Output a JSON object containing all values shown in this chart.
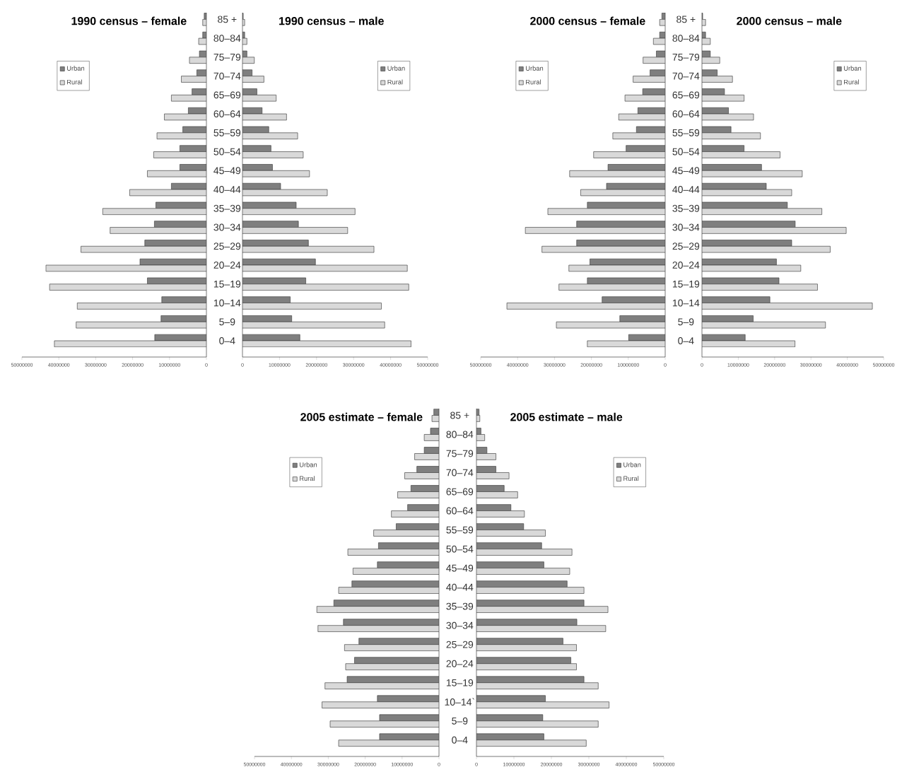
{
  "chart_data": [
    {
      "type": "bar",
      "orientation": "horizontal",
      "title": "1990 census – female",
      "categories": [
        "85 +",
        "80–84",
        "75–79",
        "70–74",
        "65–69",
        "60–64",
        "55–59",
        "50–54",
        "45–49",
        "40–44",
        "35–39",
        "30–34",
        "25–29",
        "20–24",
        "15–19",
        "10–14",
        "5–9",
        "0–4"
      ],
      "xlim": [
        50000000,
        0
      ],
      "xticks": [
        0,
        10000000,
        20000000,
        30000000,
        40000000,
        50000000
      ],
      "legend": "top left",
      "series": [
        {
          "name": "Urban",
          "color": "#7f7f7f",
          "values": [
            600000,
            1000000,
            1900000,
            2600000,
            3900000,
            4900000,
            6400000,
            7200000,
            7200000,
            9500000,
            13700000,
            14100000,
            16700000,
            18000000,
            16000000,
            12100000,
            12300000,
            14000000
          ]
        },
        {
          "name": "Rural",
          "color": "#d9d9d9",
          "values": [
            1000000,
            2100000,
            4600000,
            6800000,
            9500000,
            11400000,
            13400000,
            14300000,
            16000000,
            20800000,
            28100000,
            26100000,
            34000000,
            43500000,
            42500000,
            35000000,
            35300000,
            41200000
          ]
        }
      ]
    },
    {
      "type": "bar",
      "orientation": "horizontal",
      "title": "1990 census – male",
      "categories": [
        null,
        null,
        null,
        null,
        null,
        null,
        null,
        null,
        null,
        null,
        null,
        null,
        null,
        null,
        null,
        null,
        null,
        null
      ],
      "xlim": [
        0,
        50000000
      ],
      "xticks": [
        0,
        10000000,
        20000000,
        30000000,
        40000000,
        50000000
      ],
      "legend": "top right",
      "tick_labels": "x",
      "series": [
        {
          "name": "Urban",
          "color": "#7f7f7f",
          "values": [
            200000,
            600000,
            1200000,
            2600000,
            3900000,
            5300000,
            7100000,
            7700000,
            8100000,
            10300000,
            14500000,
            15100000,
            17800000,
            19700000,
            17100000,
            12900000,
            13300000,
            15500000
          ]
        },
        {
          "name": "Rural",
          "color": "#d9d9d9",
          "values": [
            600000,
            1200000,
            3200000,
            5800000,
            9100000,
            11900000,
            14900000,
            16400000,
            18100000,
            22900000,
            30400000,
            28400000,
            35500000,
            44500000,
            44900000,
            37500000,
            38400000,
            45500000
          ]
        }
      ]
    },
    {
      "type": "bar",
      "orientation": "horizontal",
      "title": "2000 census – female",
      "categories": [
        "85 +",
        "80–84",
        "75–79",
        "70–74",
        "65–69",
        "60–64",
        "55–59",
        "50–54",
        "45–49",
        "40–44",
        "35–39",
        "30–34",
        "25–29",
        "20–24",
        "15–19",
        "10–14",
        "5–9",
        "0–4"
      ],
      "xlim": [
        50000000,
        0
      ],
      "xticks": [
        0,
        10000000,
        20000000,
        30000000,
        40000000,
        50000000
      ],
      "legend": "top left",
      "series": [
        {
          "name": "Urban",
          "color": "#7f7f7f",
          "values": [
            900000,
            1500000,
            2400000,
            4100000,
            6100000,
            7400000,
            7800000,
            10600000,
            15500000,
            15900000,
            21100000,
            24000000,
            24000000,
            20400000,
            21100000,
            17100000,
            12300000,
            9900000
          ]
        },
        {
          "name": "Rural",
          "color": "#d9d9d9",
          "values": [
            1500000,
            3200000,
            6000000,
            8700000,
            10900000,
            12600000,
            14200000,
            19400000,
            25900000,
            22900000,
            31800000,
            37900000,
            33400000,
            26100000,
            28800000,
            42900000,
            29500000,
            21100000
          ]
        }
      ]
    },
    {
      "type": "bar",
      "orientation": "horizontal",
      "title": "2000 census – male",
      "categories": [
        null,
        null,
        null,
        null,
        null,
        null,
        null,
        null,
        null,
        null,
        null,
        null,
        null,
        null,
        null,
        null,
        null,
        null
      ],
      "xlim": [
        0,
        50000000
      ],
      "xticks": [
        0,
        10000000,
        20000000,
        30000000,
        40000000,
        50000000
      ],
      "legend": "top right",
      "tick_labels": "x",
      "series": [
        {
          "name": "Urban",
          "color": "#7f7f7f",
          "values": [
            200000,
            1000000,
            2300000,
            4200000,
            6200000,
            7300000,
            8000000,
            11600000,
            16400000,
            17700000,
            23500000,
            25700000,
            24700000,
            20500000,
            21200000,
            18700000,
            14100000,
            11900000
          ]
        },
        {
          "name": "Rural",
          "color": "#d9d9d9",
          "values": [
            1000000,
            2300000,
            4900000,
            8400000,
            11600000,
            14200000,
            16100000,
            21500000,
            27600000,
            24700000,
            33000000,
            39700000,
            35300000,
            27200000,
            31800000,
            46900000,
            34000000,
            25600000
          ]
        }
      ]
    },
    {
      "type": "bar",
      "orientation": "horizontal",
      "title": "2005 estimate – female",
      "categories": [
        "85 +",
        "80–84",
        "75–79",
        "70–74",
        "65–69",
        "60–64",
        "55–59",
        "50–54",
        "45–49",
        "40–44",
        "35–39",
        "30–34",
        "25–29",
        "20–24",
        "15–19",
        "10–14`",
        "5–9",
        "0–4"
      ],
      "xlim": [
        50000000,
        0
      ],
      "xticks": [
        0,
        10000000,
        20000000,
        30000000,
        40000000,
        50000000
      ],
      "legend": "top left",
      "series": [
        {
          "name": "Urban",
          "color": "#7f7f7f",
          "values": [
            1400000,
            2300000,
            4000000,
            6000000,
            7600000,
            8500000,
            11600000,
            16400000,
            16700000,
            23600000,
            28500000,
            25900000,
            21700000,
            22900000,
            24900000,
            16700000,
            16100000,
            16100000
          ]
        },
        {
          "name": "Rural",
          "color": "#d9d9d9",
          "values": [
            1900000,
            4000000,
            6600000,
            9300000,
            11200000,
            12900000,
            17700000,
            24700000,
            23300000,
            27200000,
            33100000,
            32800000,
            25600000,
            25300000,
            30900000,
            31700000,
            29500000,
            27200000
          ]
        }
      ]
    },
    {
      "type": "bar",
      "orientation": "horizontal",
      "title": "2005 estimate – male",
      "categories": [
        null,
        null,
        null,
        null,
        null,
        null,
        null,
        null,
        null,
        null,
        null,
        null,
        null,
        null,
        null,
        null,
        null,
        null
      ],
      "xlim": [
        0,
        50000000
      ],
      "xticks": [
        0,
        10000000,
        20000000,
        30000000,
        40000000,
        50000000
      ],
      "legend": "top right",
      "tick_labels": "x",
      "series": [
        {
          "name": "Urban",
          "color": "#7f7f7f",
          "values": [
            700000,
            1200000,
            2800000,
            5200000,
            7400000,
            9200000,
            12600000,
            17400000,
            18000000,
            24200000,
            28700000,
            26800000,
            23100000,
            25200000,
            28700000,
            18400000,
            17700000,
            18000000
          ]
        },
        {
          "name": "Rural",
          "color": "#d9d9d9",
          "values": [
            900000,
            2200000,
            5200000,
            8700000,
            11000000,
            12800000,
            18400000,
            25500000,
            24900000,
            28700000,
            35100000,
            34500000,
            26700000,
            26700000,
            32500000,
            35400000,
            32500000,
            29300000
          ]
        }
      ]
    }
  ]
}
